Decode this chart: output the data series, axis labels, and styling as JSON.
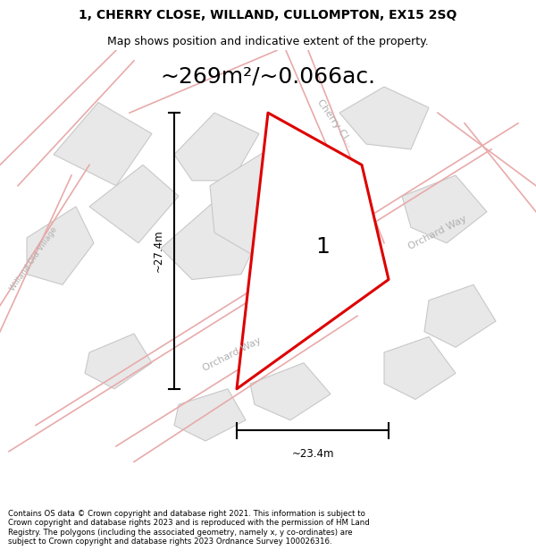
{
  "title_line1": "1, CHERRY CLOSE, WILLAND, CULLOMPTON, EX15 2SQ",
  "title_line2": "Map shows position and indicative extent of the property.",
  "area_text": "~269m²/~0.066ac.",
  "label_number": "1",
  "dim_horizontal": "~23.4m",
  "dim_vertical": "~27.4m",
  "footer": "Contains OS data © Crown copyright and database right 2021. This information is subject to Crown copyright and database rights 2023 and is reproduced with the permission of HM Land Registry. The polygons (including the associated geometry, namely x, y co-ordinates) are subject to Crown copyright and database rights 2023 Ordnance Survey 100026316.",
  "bg_color": "#ffffff",
  "map_bg": "#ffffff",
  "road_fill_color": "#f5f5f5",
  "road_line_color": "#e8aaaa",
  "plot_outline_color": "#dd0000",
  "plot_fill_color": "#ececec",
  "block_fill_color": "#e8e8e8",
  "block_edge_color": "#c8c8c8",
  "street_label_color": "#b0b0b0",
  "dim_line_color": "#000000",
  "title_fontsize": 10,
  "subtitle_fontsize": 9,
  "area_fontsize": 18,
  "street_fontsize": 8,
  "dim_fontsize": 8.5,
  "label_fontsize": 18
}
